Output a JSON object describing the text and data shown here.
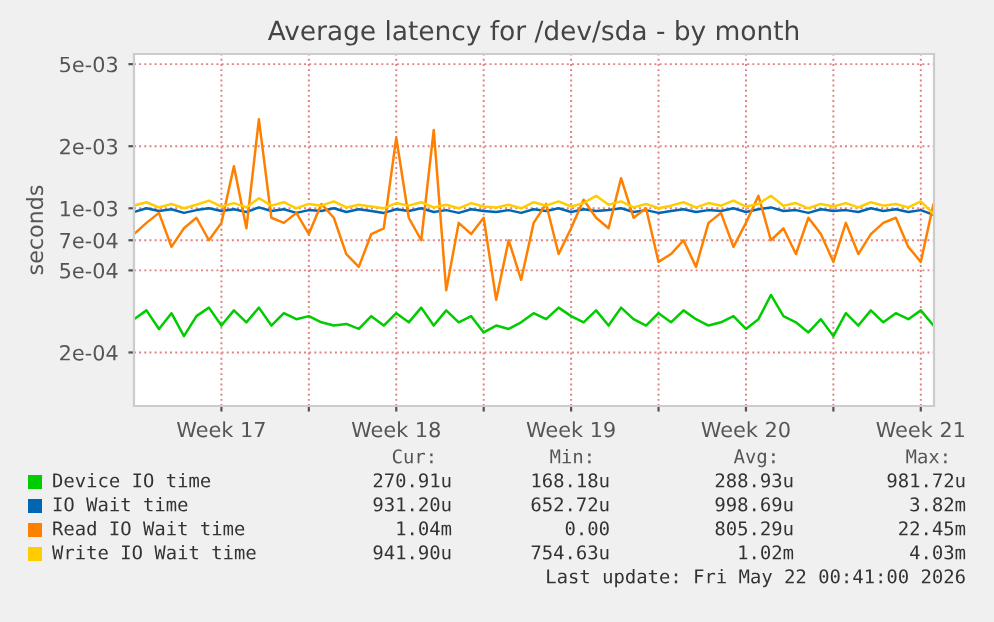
{
  "chart_data": {
    "type": "line",
    "title": "Average latency for /dev/sda - by month",
    "ylabel": "seconds",
    "log": "y",
    "grid": true,
    "legend": "bottom",
    "marker": "none",
    "line_style": "solid",
    "ylim": [
      0.00011,
      0.0056
    ],
    "yticks": [
      {
        "value": 0.0002,
        "label": "2e-04"
      },
      {
        "value": 0.0005,
        "label": "5e-04"
      },
      {
        "value": 0.0007,
        "label": "7e-04"
      },
      {
        "value": 0.001,
        "label": "1e-03"
      },
      {
        "value": 0.002,
        "label": "2e-03"
      },
      {
        "value": 0.005,
        "label": "5e-03"
      }
    ],
    "xlim": [
      "2026-04-20T00:00",
      "2026-05-22T00:41"
    ],
    "xticks": [
      {
        "value": "2026-04-23T12:00",
        "label": "Week 17"
      },
      {
        "value": "2026-04-27",
        "label": null
      },
      {
        "value": "2026-04-30T12:00",
        "label": "Week 18"
      },
      {
        "value": "2026-05-04",
        "label": null
      },
      {
        "value": "2026-05-07T12:00",
        "label": "Week 19"
      },
      {
        "value": "2026-05-11",
        "label": null
      },
      {
        "value": "2026-05-14T12:00",
        "label": "Week 20"
      },
      {
        "value": "2026-05-18",
        "label": null
      },
      {
        "value": "2026-05-21T12:00",
        "label": "Week 21"
      }
    ],
    "x": [
      "2026-04-20T00:00",
      "2026-04-20T12:00",
      "2026-04-21T00:00",
      "2026-04-21T12:00",
      "2026-04-22T00:00",
      "2026-04-22T12:00",
      "2026-04-23T00:00",
      "2026-04-23T12:00",
      "2026-04-24T00:00",
      "2026-04-24T12:00",
      "2026-04-25T00:00",
      "2026-04-25T12:00",
      "2026-04-26T00:00",
      "2026-04-26T12:00",
      "2026-04-27T00:00",
      "2026-04-27T12:00",
      "2026-04-28T00:00",
      "2026-04-28T12:00",
      "2026-04-29T00:00",
      "2026-04-29T12:00",
      "2026-04-30T00:00",
      "2026-04-30T12:00",
      "2026-05-01T00:00",
      "2026-05-01T12:00",
      "2026-05-02T00:00",
      "2026-05-02T12:00",
      "2026-05-03T00:00",
      "2026-05-03T12:00",
      "2026-05-04T00:00",
      "2026-05-04T12:00",
      "2026-05-05T00:00",
      "2026-05-05T12:00",
      "2026-05-06T00:00",
      "2026-05-06T12:00",
      "2026-05-07T00:00",
      "2026-05-07T12:00",
      "2026-05-08T00:00",
      "2026-05-08T12:00",
      "2026-05-09T00:00",
      "2026-05-09T12:00",
      "2026-05-10T00:00",
      "2026-05-10T12:00",
      "2026-05-11T00:00",
      "2026-05-11T12:00",
      "2026-05-12T00:00",
      "2026-05-12T12:00",
      "2026-05-13T00:00",
      "2026-05-13T12:00",
      "2026-05-14T00:00",
      "2026-05-14T12:00",
      "2026-05-15T00:00",
      "2026-05-15T12:00",
      "2026-05-16T00:00",
      "2026-05-16T12:00",
      "2026-05-17T00:00",
      "2026-05-17T12:00",
      "2026-05-18T00:00",
      "2026-05-18T12:00",
      "2026-05-19T00:00",
      "2026-05-19T12:00",
      "2026-05-20T00:00",
      "2026-05-20T12:00",
      "2026-05-21T00:00",
      "2026-05-21T12:00",
      "2026-05-22T00:00"
    ],
    "series": [
      {
        "name": "Device IO time",
        "color": "#00cc00",
        "values": [
          0.00029,
          0.00032,
          0.00026,
          0.00031,
          0.00024,
          0.0003,
          0.00033,
          0.00027,
          0.00032,
          0.00028,
          0.00033,
          0.00027,
          0.00031,
          0.00029,
          0.0003,
          0.00028,
          0.00027,
          0.000275,
          0.00026,
          0.0003,
          0.00027,
          0.00031,
          0.00028,
          0.00033,
          0.00027,
          0.00032,
          0.00028,
          0.0003,
          0.00025,
          0.00027,
          0.00026,
          0.00028,
          0.00031,
          0.00029,
          0.00033,
          0.0003,
          0.00028,
          0.00032,
          0.00027,
          0.00033,
          0.00029,
          0.00027,
          0.00031,
          0.00028,
          0.00032,
          0.00029,
          0.00027,
          0.00028,
          0.0003,
          0.00026,
          0.00029,
          0.00038,
          0.0003,
          0.00028,
          0.00025,
          0.00029,
          0.00024,
          0.00031,
          0.00027,
          0.00032,
          0.00028,
          0.00031,
          0.00029,
          0.00032,
          0.000271
        ]
      },
      {
        "name": "IO Wait time",
        "color": "#0066b3",
        "values": [
          0.00096,
          0.001,
          0.00097,
          0.00099,
          0.00095,
          0.00098,
          0.001,
          0.00097,
          0.00099,
          0.00096,
          0.00101,
          0.00097,
          0.00099,
          0.00095,
          0.00098,
          0.00097,
          0.001,
          0.00096,
          0.00099,
          0.00097,
          0.00095,
          0.00099,
          0.00097,
          0.001,
          0.00096,
          0.00098,
          0.00095,
          0.00099,
          0.00097,
          0.00096,
          0.00098,
          0.00095,
          0.00099,
          0.00097,
          0.001,
          0.00096,
          0.00099,
          0.00097,
          0.00098,
          0.001,
          0.00096,
          0.00098,
          0.00095,
          0.00097,
          0.00099,
          0.00096,
          0.00098,
          0.00097,
          0.001,
          0.00096,
          0.00099,
          0.00101,
          0.00097,
          0.00098,
          0.00095,
          0.00099,
          0.00097,
          0.00098,
          0.00096,
          0.001,
          0.00097,
          0.00099,
          0.00096,
          0.00098,
          0.000931
        ]
      },
      {
        "name": "Read IO Wait time",
        "color": "#ff8000",
        "values": [
          0.00075,
          0.00085,
          0.00095,
          0.00065,
          0.0008,
          0.0009,
          0.0007,
          0.00085,
          0.0016,
          0.0008,
          0.0027,
          0.0009,
          0.00085,
          0.00095,
          0.00075,
          0.00105,
          0.0009,
          0.0006,
          0.00052,
          0.00075,
          0.0008,
          0.0022,
          0.0009,
          0.0007,
          0.0024,
          0.0004,
          0.00085,
          0.00075,
          0.0009,
          0.00036,
          0.0007,
          0.00045,
          0.00085,
          0.00105,
          0.0006,
          0.0008,
          0.0011,
          0.0009,
          0.0008,
          0.0014,
          0.0009,
          0.001,
          0.00055,
          0.0006,
          0.0007,
          0.00052,
          0.00085,
          0.00095,
          0.00065,
          0.00085,
          0.00115,
          0.0007,
          0.0008,
          0.0006,
          0.0009,
          0.00075,
          0.00055,
          0.00085,
          0.0006,
          0.00075,
          0.00085,
          0.0009,
          0.00065,
          0.00055,
          0.00104
        ]
      },
      {
        "name": "Write IO Wait time",
        "color": "#ffcc00",
        "values": [
          0.00103,
          0.00107,
          0.00101,
          0.00105,
          0.001,
          0.00104,
          0.00109,
          0.00102,
          0.00106,
          0.00101,
          0.00112,
          0.00103,
          0.00107,
          0.001,
          0.00105,
          0.00103,
          0.00108,
          0.00101,
          0.00104,
          0.00102,
          0.001,
          0.00106,
          0.00103,
          0.00107,
          0.00101,
          0.00104,
          0.001,
          0.00106,
          0.00102,
          0.00101,
          0.00104,
          0.001,
          0.00107,
          0.00103,
          0.00108,
          0.00102,
          0.00106,
          0.00115,
          0.00104,
          0.00108,
          0.00101,
          0.00105,
          0.001,
          0.00103,
          0.00107,
          0.00101,
          0.00106,
          0.00103,
          0.00109,
          0.00102,
          0.00105,
          0.00115,
          0.00103,
          0.00106,
          0.001,
          0.00105,
          0.00102,
          0.00106,
          0.00101,
          0.00107,
          0.00103,
          0.00105,
          0.00101,
          0.00108,
          0.000942
        ]
      }
    ],
    "annotations": [
      "Cur:",
      "Min:",
      "Avg:",
      "Max:",
      "270.91u",
      "168.18u",
      "288.93u",
      "981.72u",
      "931.20u",
      "652.72u",
      "998.69u",
      "3.82m",
      "1.04m",
      "0.00",
      "805.29u",
      "22.45m",
      "941.90u",
      "754.63u",
      "1.02m",
      "4.03m",
      "Last update: Fri May 22 00:41:00 2026"
    ]
  }
}
